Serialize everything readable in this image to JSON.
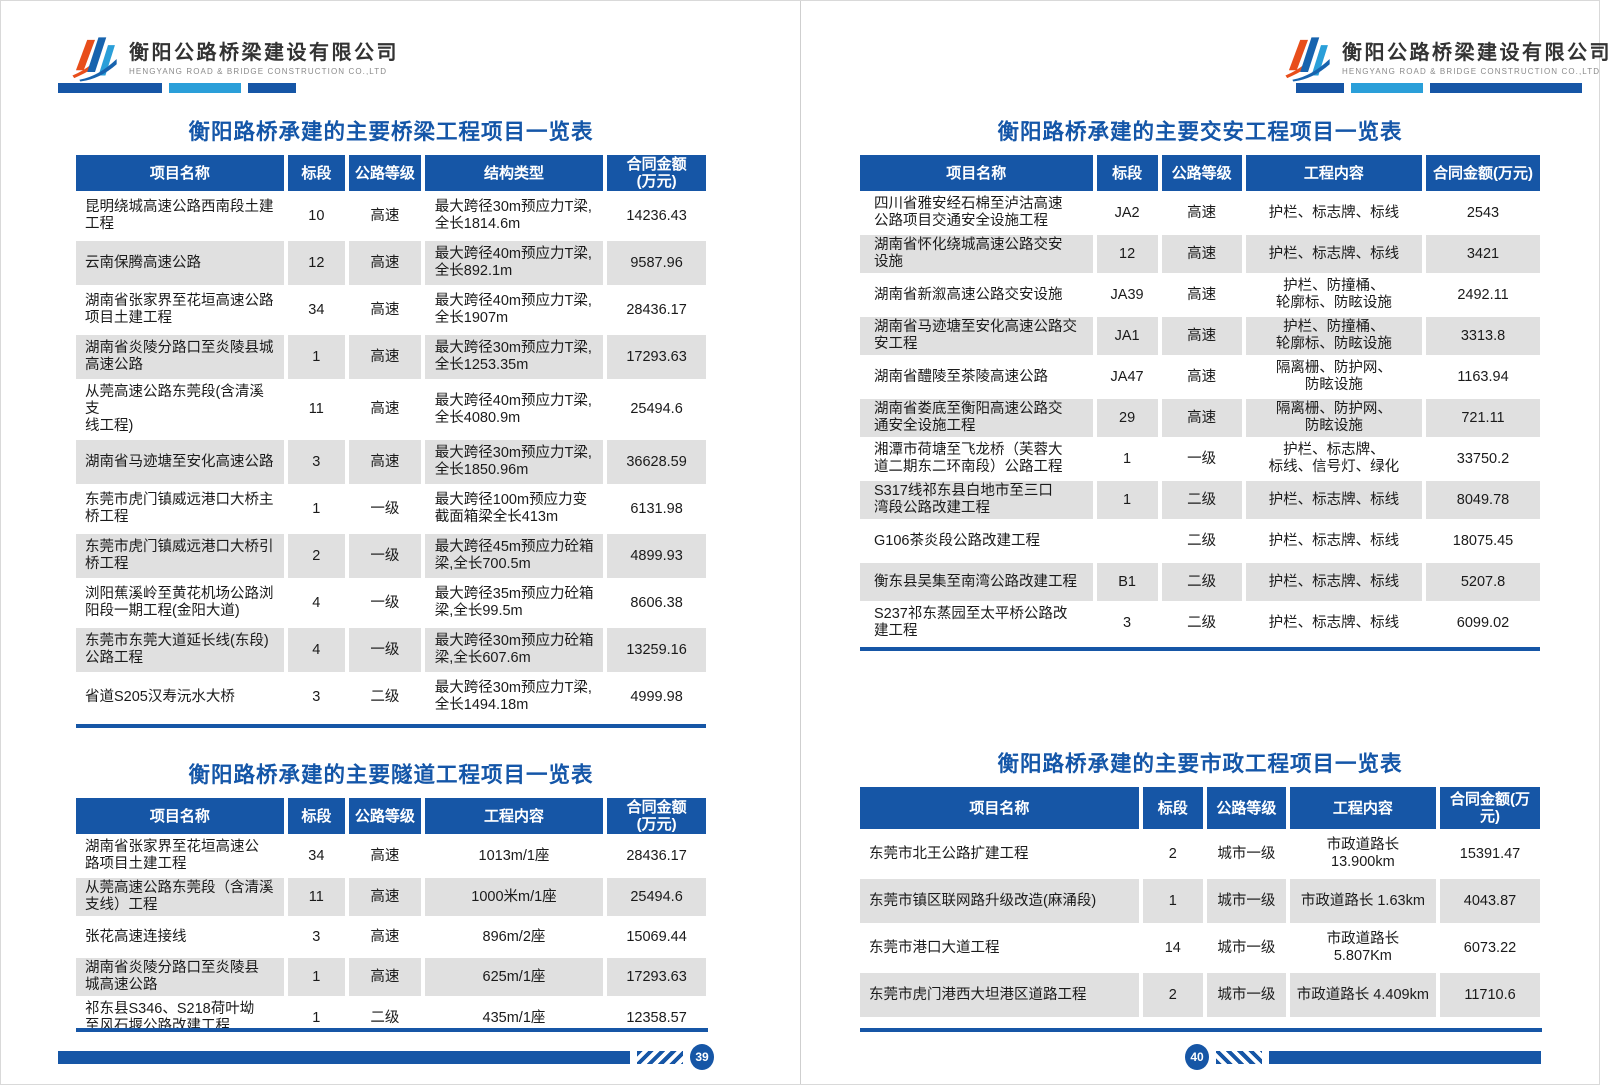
{
  "company": {
    "name_cn": "衡阳公路桥梁建设有限公司",
    "name_en": "HENGYANG ROAD & BRIDGE CONSTRUCTION CO.,LTD"
  },
  "colors": {
    "primary_blue": "#1656a6",
    "accent_light_blue": "#2a9fd9",
    "logo_orange": "#e84e1b",
    "row_gray": "#e0e0e0",
    "title_blue": "#1456a8"
  },
  "left_page": {
    "page_number": "39",
    "bridge_table": {
      "title": "衡阳路桥承建的主要桥梁工程项目一览表",
      "headers": [
        "项目名称",
        "标段",
        "公路等级",
        "结构类型",
        "合同金额\n(万元)"
      ],
      "rows": [
        [
          "昆明绕城高速公路西南段土建\n工程",
          "10",
          "高速",
          "最大跨径30m预应力T梁,\n全长1814.6m",
          "14236.43"
        ],
        [
          "云南保腾高速公路",
          "12",
          "高速",
          "最大跨径40m预应力T梁,\n全长892.1m",
          "9587.96"
        ],
        [
          "湖南省张家界至花垣高速公路\n项目土建工程",
          "34",
          "高速",
          "最大跨径40m预应力T梁,\n全长1907m",
          "28436.17"
        ],
        [
          "湖南省炎陵分路口至炎陵县城\n高速公路",
          "1",
          "高速",
          "最大跨径30m预应力T梁,\n全长1253.35m",
          "17293.63"
        ],
        [
          "从莞高速公路东莞段(含清溪支\n线工程)",
          "11",
          "高速",
          "最大跨径40m预应力T梁,\n全长4080.9m",
          "25494.6"
        ],
        [
          "湖南省马迹塘至安化高速公路",
          "3",
          "高速",
          "最大跨径30m预应力T梁,\n全长1850.96m",
          "36628.59"
        ],
        [
          "东莞市虎门镇威远港口大桥主\n桥工程",
          "1",
          "一级",
          "最大跨径100m预应力变\n截面箱梁全长413m",
          "6131.98"
        ],
        [
          "东莞市虎门镇威远港口大桥引\n桥工程",
          "2",
          "一级",
          "最大跨径45m预应力砼箱\n梁,全长700.5m",
          "4899.93"
        ],
        [
          "浏阳蕉溪岭至黄花机场公路浏\n阳段一期工程(金阳大道)",
          "4",
          "一级",
          "最大跨径35m预应力砼箱\n梁,全长99.5m",
          "8606.38"
        ],
        [
          "东莞市东莞大道延长线(东段)\n公路工程",
          "4",
          "一级",
          "最大跨径30m预应力砼箱\n梁,全长607.6m",
          "13259.16"
        ],
        [
          "省道S205汉寿沅水大桥",
          "3",
          "二级",
          "最大跨径30m预应力T梁,\n全长1494.18m",
          "4999.98"
        ]
      ]
    },
    "tunnel_table": {
      "title": "衡阳路桥承建的主要隧道工程项目一览表",
      "headers": [
        "项目名称",
        "标段",
        "公路等级",
        "工程内容",
        "合同金额\n(万元)"
      ],
      "rows": [
        [
          "湖南省张家界至花垣高速公\n路项目土建工程",
          "34",
          "高速",
          "1013m/1座",
          "28436.17"
        ],
        [
          "从莞高速公路东莞段（含清溪\n支线）工程",
          "11",
          "高速",
          "1000米m/1座",
          "25494.6"
        ],
        [
          "张花高速连接线",
          "3",
          "高速",
          "896m/2座",
          "15069.44"
        ],
        [
          "湖南省炎陵分路口至炎陵县\n城高速公路",
          "1",
          "高速",
          "625m/1座",
          "17293.63"
        ],
        [
          "祁东县S346、S218荷叶坳\n至风石堰公路改建工程",
          "1",
          "二级",
          "435m/1座",
          "12358.57"
        ]
      ]
    }
  },
  "right_page": {
    "page_number": "40",
    "traffic_safety_table": {
      "title": "衡阳路桥承建的主要交安工程项目一览表",
      "headers": [
        "项目名称",
        "标段",
        "公路等级",
        "工程内容",
        "合同金额(万元)"
      ],
      "rows": [
        [
          "四川省雅安经石棉至泸沽高速\n公路项目交通安全设施工程",
          "JA2",
          "高速",
          "护栏、标志牌、标线",
          "2543"
        ],
        [
          "湖南省怀化绕城高速公路交安\n设施",
          "12",
          "高速",
          "护栏、标志牌、标线",
          "3421"
        ],
        [
          "湖南省新溆高速公路交安设施",
          "JA39",
          "高速",
          "护栏、防撞桶、\n轮廓标、防眩设施",
          "2492.11"
        ],
        [
          "湖南省马迹塘至安化高速公路交\n安工程",
          "JA1",
          "高速",
          "护栏、防撞桶、\n轮廓标、防眩设施",
          "3313.8"
        ],
        [
          "湖南省醴陵至茶陵高速公路",
          "JA47",
          "高速",
          "隔离栅、防护网、\n防眩设施",
          "1163.94"
        ],
        [
          "湖南省娄底至衡阳高速公路交\n通安全设施工程",
          "29",
          "高速",
          "隔离栅、防护网、\n防眩设施",
          "721.11"
        ],
        [
          "湘潭市荷塘至飞龙桥（芙蓉大\n道二期东二环南段）公路工程",
          "1",
          "一级",
          "护栏、标志牌、\n标线、信号灯、绿化",
          "33750.2"
        ],
        [
          "S317线祁东县白地市至三口\n湾段公路改建工程",
          "1",
          "二级",
          "护栏、标志牌、标线",
          "8049.78"
        ],
        [
          "G106茶炎段公路改建工程",
          "",
          "二级",
          "护栏、标志牌、标线",
          "18075.45"
        ],
        [
          "衡东县吴集至南湾公路改建工程",
          "B1",
          "二级",
          "护栏、标志牌、标线",
          "5207.8"
        ],
        [
          "S237祁东蒸园至太平桥公路改\n建工程",
          "3",
          "二级",
          "护栏、标志牌、标线",
          "6099.02"
        ]
      ]
    },
    "municipal_table": {
      "title": "衡阳路桥承建的主要市政工程项目一览表",
      "headers": [
        "项目名称",
        "标段",
        "公路等级",
        "工程内容",
        "合同金额(万元)"
      ],
      "rows": [
        [
          "东莞市北王公路扩建工程",
          "2",
          "城市一级",
          "市政道路长 13.900km",
          "15391.47"
        ],
        [
          "东莞市镇区联网路升级改造(麻涌段)",
          "1",
          "城市一级",
          "市政道路长 1.63km",
          "4043.87"
        ],
        [
          "东莞市港口大道工程",
          "14",
          "城市一级",
          "市政道路长 5.807Km",
          "6073.22"
        ],
        [
          "东莞市虎门港西大坦港区道路工程",
          "2",
          "城市一级",
          "市政道路长 4.409km",
          "11710.6"
        ]
      ]
    }
  }
}
